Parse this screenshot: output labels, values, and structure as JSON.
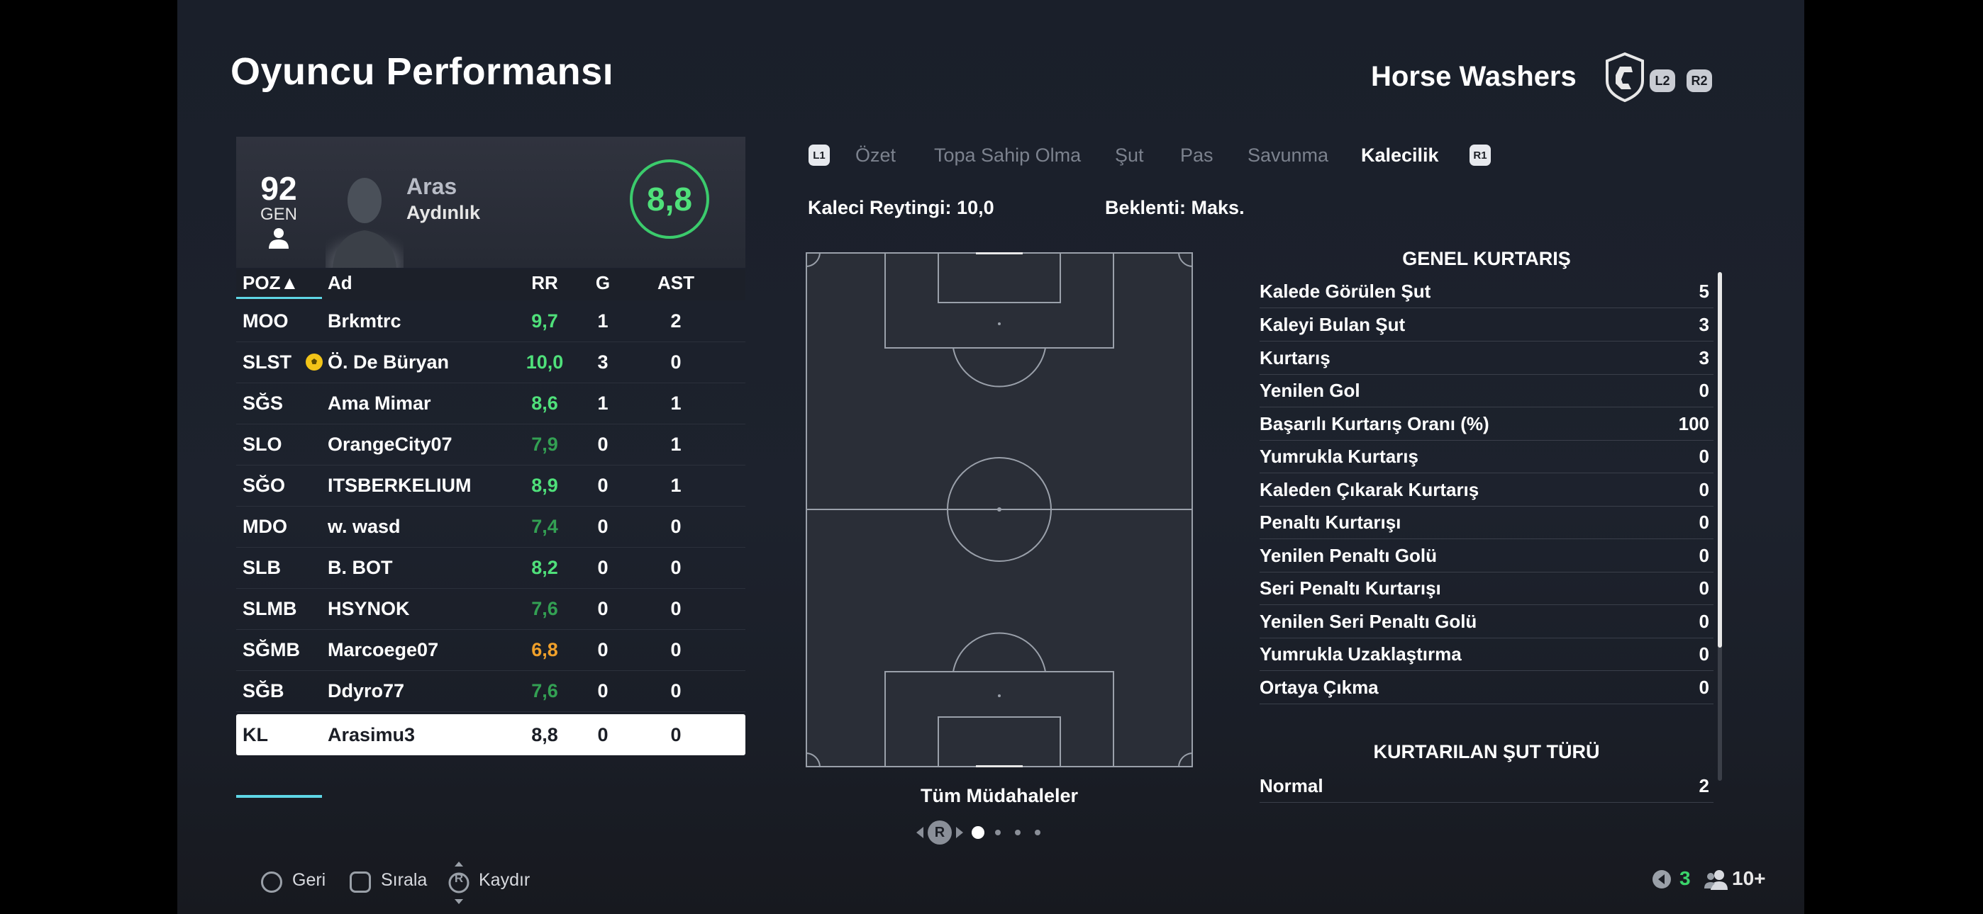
{
  "header": {
    "title": "Oyuncu Performansı",
    "team_name": "Horse Washers",
    "l2": "L2",
    "r2": "R2"
  },
  "player": {
    "ovr": "92",
    "ovr_label": "GEN",
    "first_name": "Aras",
    "last_name": "Aydınlık",
    "match_rating": "8,8"
  },
  "table": {
    "headers": {
      "pos": "POZ▲",
      "name": "Ad",
      "rr": "RR",
      "g": "G",
      "ast": "AST"
    },
    "rows": [
      {
        "pos": "MOO",
        "name": "Brkmtrc",
        "rr": "9,7",
        "g": "1",
        "ast": "2",
        "rr_color": "#4fe07a"
      },
      {
        "pos": "SLST",
        "name": "Ö. De Büryan",
        "rr": "10,0",
        "g": "3",
        "ast": "0",
        "rr_color": "#4fe07a"
      },
      {
        "pos": "SĞS",
        "name": "Ama Mimar",
        "rr": "8,6",
        "g": "1",
        "ast": "1",
        "rr_color": "#4fe07a"
      },
      {
        "pos": "SLO",
        "name": "OrangeCity07",
        "rr": "7,9",
        "g": "0",
        "ast": "1",
        "rr_color": "#33a053"
      },
      {
        "pos": "SĞO",
        "name": "ITSBERKELIUM",
        "rr": "8,9",
        "g": "0",
        "ast": "1",
        "rr_color": "#4fe07a"
      },
      {
        "pos": "MDO",
        "name": "w. wasd",
        "rr": "7,4",
        "g": "0",
        "ast": "0",
        "rr_color": "#33a053"
      },
      {
        "pos": "SLB",
        "name": "B. BOT",
        "rr": "8,2",
        "g": "0",
        "ast": "0",
        "rr_color": "#4fe07a"
      },
      {
        "pos": "SLMB",
        "name": "HSYNOK",
        "rr": "7,6",
        "g": "0",
        "ast": "0",
        "rr_color": "#33a053"
      },
      {
        "pos": "SĞMB",
        "name": "Marcoege07",
        "rr": "6,8",
        "g": "0",
        "ast": "0",
        "rr_color": "#f0a02a"
      },
      {
        "pos": "SĞB",
        "name": "Ddyro77",
        "rr": "7,6",
        "g": "0",
        "ast": "0",
        "rr_color": "#33a053"
      },
      {
        "pos": "KL",
        "name": "Arasimu3",
        "rr": "8,8",
        "g": "0",
        "ast": "0",
        "rr_color": "#1b1e26",
        "selected": true
      }
    ]
  },
  "tabs": {
    "l1": "L1",
    "r1": "R1",
    "items": [
      "Özet",
      "Topa Sahip Olma",
      "Şut",
      "Pas",
      "Savunma",
      "Kalecilik"
    ],
    "active": "Kalecilik"
  },
  "summary": {
    "gk_rating": "Kaleci Reytingi: 10,0",
    "expected": "Beklenti: Maks."
  },
  "pitch": {
    "label": "Tüm Müdahaleler",
    "pager_button": "R"
  },
  "stats": {
    "section1_title": "GENEL KURTARIŞ",
    "section1_rows": [
      {
        "label": "Kalede Görülen Şut",
        "value": "5"
      },
      {
        "label": "Kaleyi Bulan Şut",
        "value": "3"
      },
      {
        "label": "Kurtarış",
        "value": "3"
      },
      {
        "label": "Yenilen Gol",
        "value": "0"
      },
      {
        "label": "Başarılı Kurtarış Oranı (%)",
        "value": "100"
      },
      {
        "label": "Yumrukla Kurtarış",
        "value": "0"
      },
      {
        "label": "Kaleden Çıkarak Kurtarış",
        "value": "0"
      },
      {
        "label": "Penaltı Kurtarışı",
        "value": "0"
      },
      {
        "label": "Yenilen Penaltı Golü",
        "value": "0"
      },
      {
        "label": "Seri Penaltı Kurtarışı",
        "value": "0"
      },
      {
        "label": "Yenilen Seri Penaltı Golü",
        "value": "0"
      },
      {
        "label": "Yumrukla Uzaklaştırma",
        "value": "0"
      },
      {
        "label": "Ortaya Çıkma",
        "value": "0"
      }
    ],
    "section2_title": "KURTARILAN ŞUT TÜRÜ",
    "section2_rows": [
      {
        "label": "Normal",
        "value": "2"
      }
    ]
  },
  "footer": {
    "back": "Geri",
    "sort": "Sırala",
    "scroll": "Kaydır",
    "scroll_button": "R",
    "mic_count": "3",
    "party_count": "10+"
  }
}
